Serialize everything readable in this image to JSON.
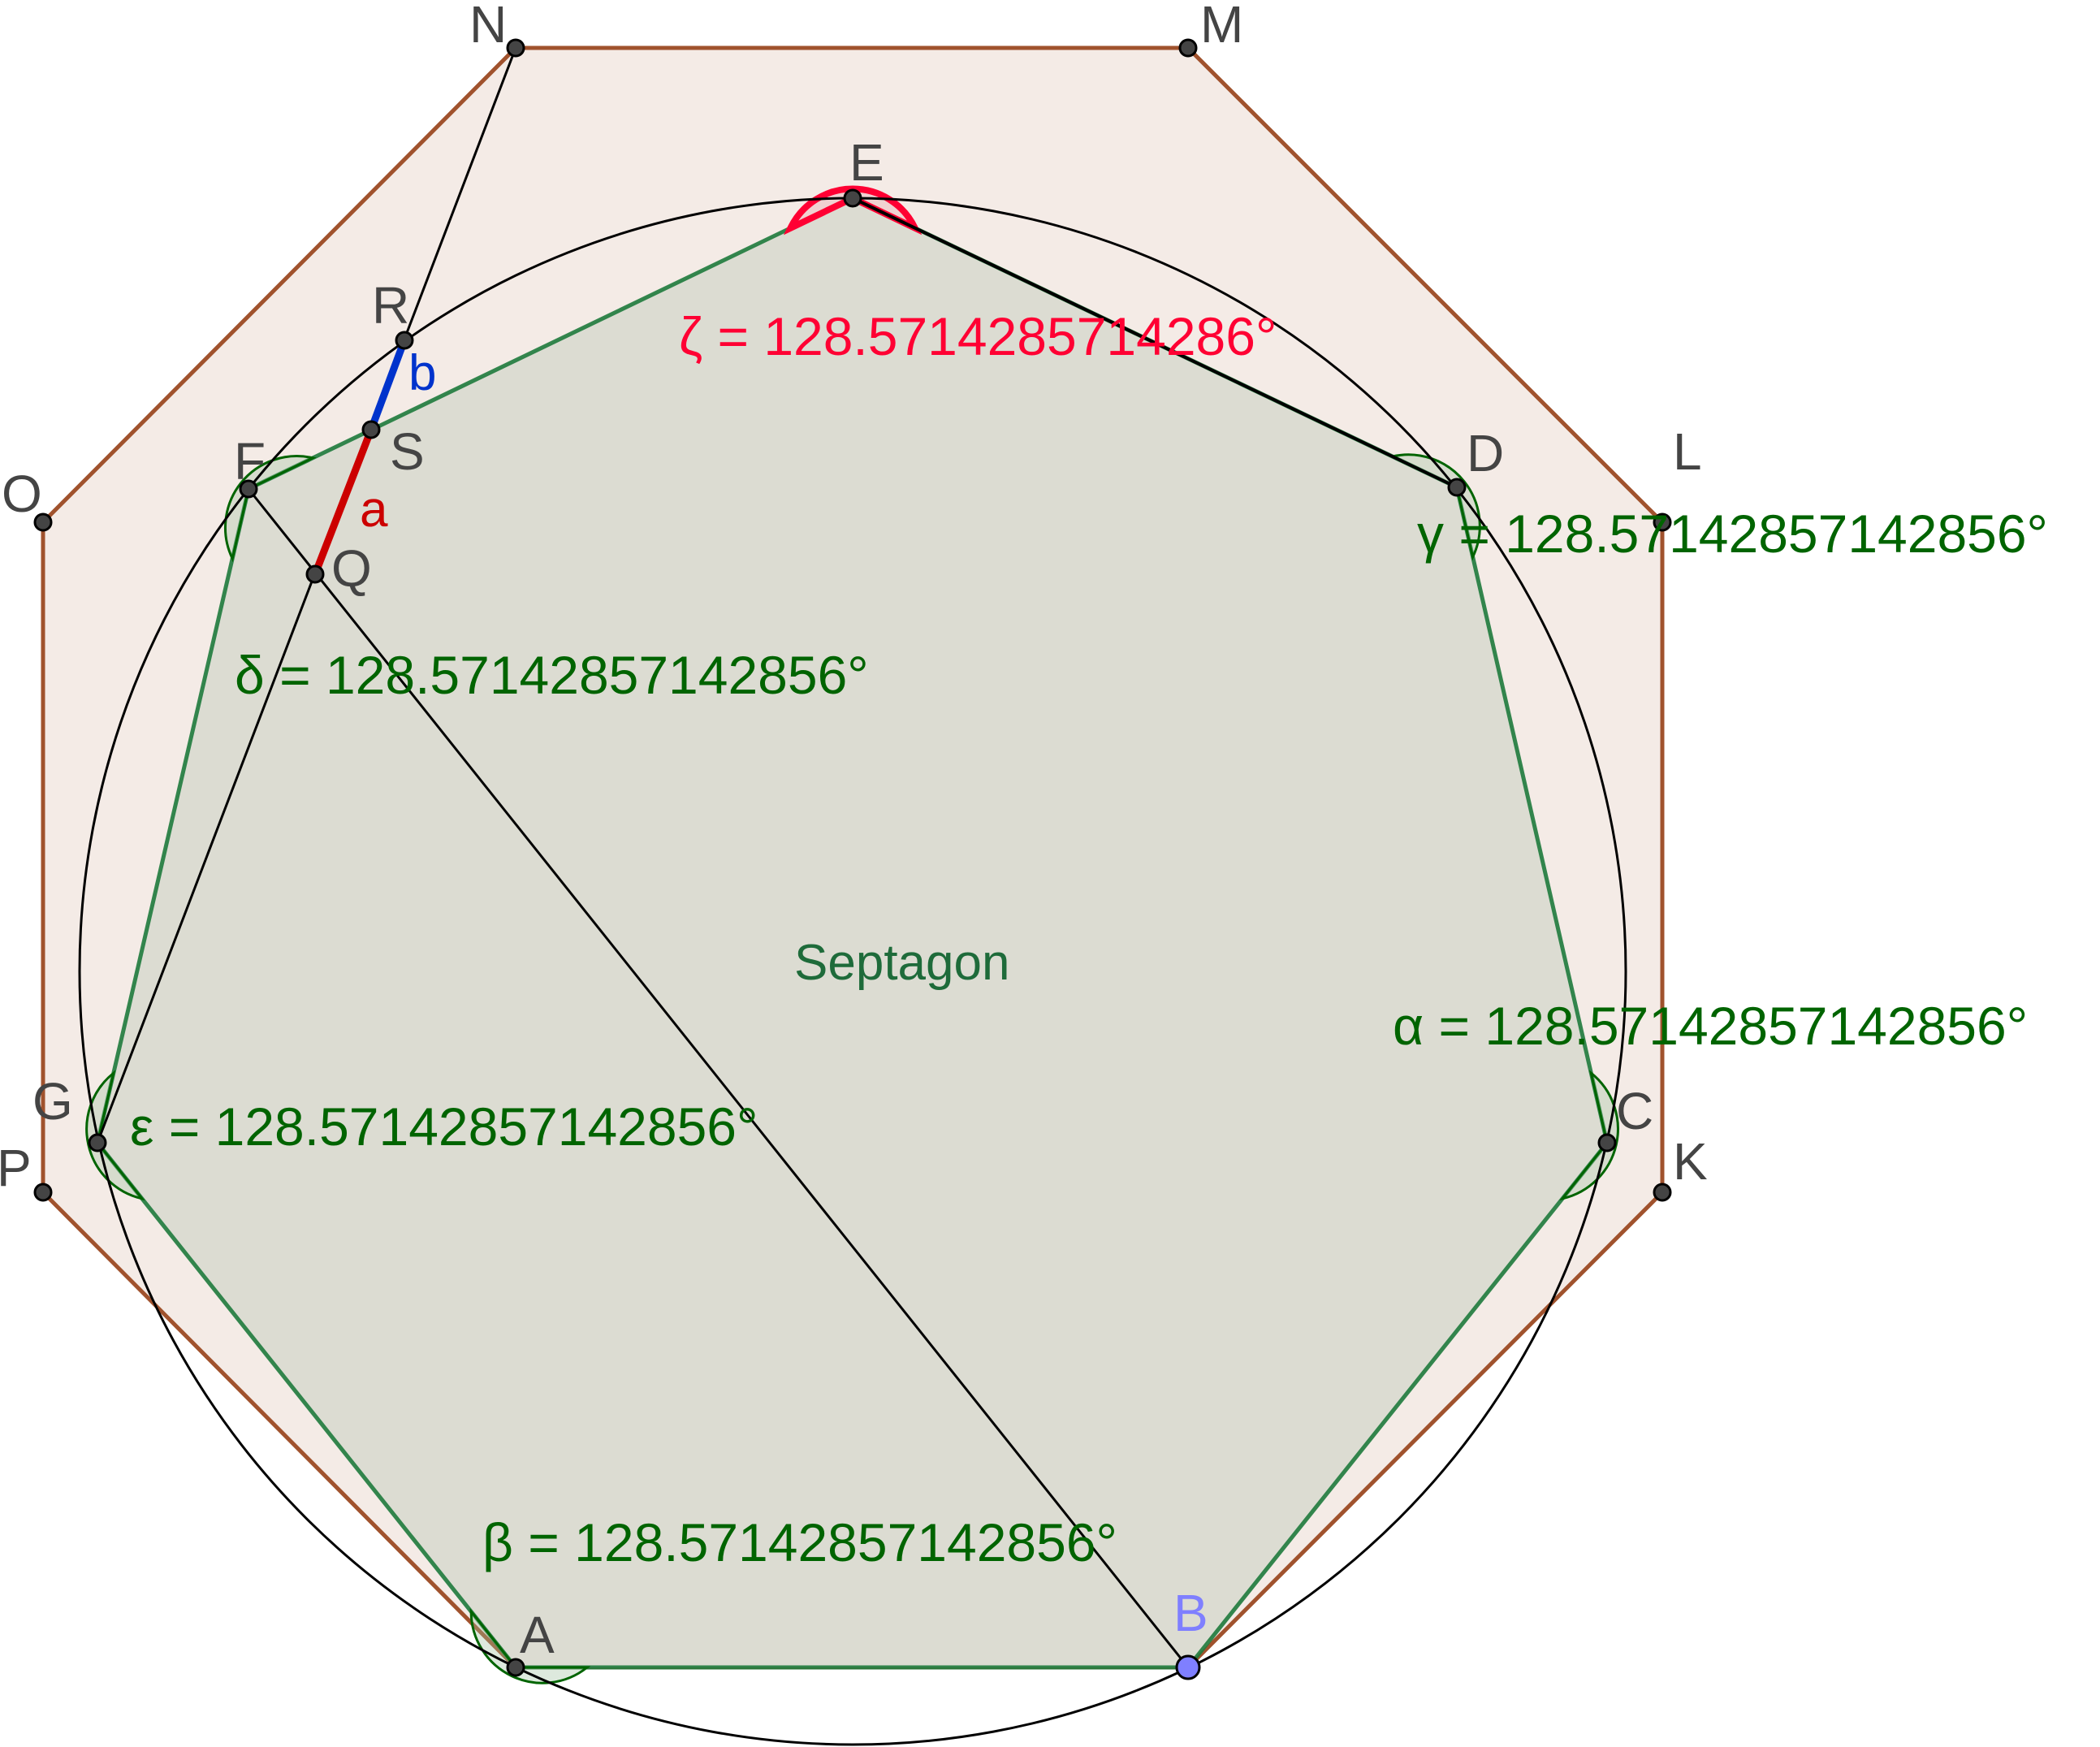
{
  "polygon_label": "Septagon",
  "points": {
    "A": "A",
    "B": "B",
    "C": "C",
    "D": "D",
    "E": "E",
    "F": "F",
    "G": "G",
    "K": "K",
    "L": "L",
    "M": "M",
    "N": "N",
    "O": "O",
    "P": "P",
    "Q": "Q",
    "R": "R",
    "S": "S"
  },
  "segments": {
    "a": "a",
    "b": "b"
  },
  "angles": {
    "alpha": "α = 128.57142857142856°",
    "beta": "β = 128.57142857142856°",
    "gamma": "γ = 128.57142857142856°",
    "delta": "δ = 128.57142857142856°",
    "epsilon": "ε = 128.57142857142856°",
    "zeta": "ζ = 128.5714285714286°"
  },
  "colors": {
    "octagon_fill": "#f4ebe6",
    "octagon_edge": "#a0522d",
    "heptagon_fill": "#dcdcd2",
    "heptagon_edge": "#1e7a3c",
    "angle_green": "#006400",
    "angle_red": "#ff0033",
    "segment_a": "#cc0000",
    "segment_b": "#0033cc",
    "point_B": "#7f7fff"
  }
}
